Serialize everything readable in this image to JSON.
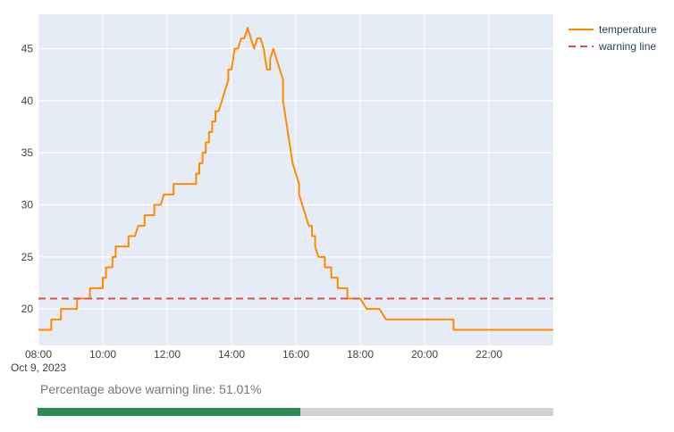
{
  "chart_data": {
    "type": "line",
    "title": "",
    "xlabel": "",
    "ylabel": "",
    "x_start_label": "Oct 9, 2023",
    "x_range": [
      "2023-10-09 08:00",
      "2023-10-09 24:00"
    ],
    "ylim": [
      16.5,
      48.3
    ],
    "x_ticks": [
      "08:00",
      "10:00",
      "12:00",
      "14:00",
      "16:00",
      "18:00",
      "20:00",
      "22:00"
    ],
    "y_ticks": [
      20,
      25,
      30,
      35,
      40,
      45
    ],
    "grid": true,
    "legend_position": "top-right",
    "series": [
      {
        "name": "temperature",
        "color": "#ff8c00",
        "dash": "solid",
        "points": [
          [
            "08:00",
            18
          ],
          [
            "08:24",
            18
          ],
          [
            "08:24",
            19
          ],
          [
            "08:42",
            19
          ],
          [
            "08:42",
            20
          ],
          [
            "09:12",
            20
          ],
          [
            "09:12",
            21
          ],
          [
            "09:36",
            21
          ],
          [
            "09:36",
            22
          ],
          [
            "10:00",
            22
          ],
          [
            "10:00",
            23
          ],
          [
            "10:06",
            23
          ],
          [
            "10:06",
            24
          ],
          [
            "10:18",
            24
          ],
          [
            "10:18",
            25
          ],
          [
            "10:24",
            25
          ],
          [
            "10:24",
            26
          ],
          [
            "10:48",
            26
          ],
          [
            "10:48",
            27
          ],
          [
            "11:00",
            27
          ],
          [
            "11:06",
            28
          ],
          [
            "11:18",
            28
          ],
          [
            "11:18",
            29
          ],
          [
            "11:36",
            29
          ],
          [
            "11:36",
            30
          ],
          [
            "11:48",
            30
          ],
          [
            "11:54",
            31
          ],
          [
            "12:12",
            31
          ],
          [
            "12:12",
            32
          ],
          [
            "12:54",
            32
          ],
          [
            "12:54",
            33
          ],
          [
            "13:00",
            33
          ],
          [
            "13:00",
            34
          ],
          [
            "13:06",
            34
          ],
          [
            "13:06",
            35
          ],
          [
            "13:12",
            35
          ],
          [
            "13:12",
            36
          ],
          [
            "13:18",
            36
          ],
          [
            "13:18",
            37
          ],
          [
            "13:24",
            37
          ],
          [
            "13:24",
            38
          ],
          [
            "13:30",
            38
          ],
          [
            "13:30",
            39
          ],
          [
            "13:36",
            39
          ],
          [
            "13:54",
            42
          ],
          [
            "13:54",
            43
          ],
          [
            "14:00",
            43
          ],
          [
            "14:06",
            45
          ],
          [
            "14:12",
            45
          ],
          [
            "14:18",
            46
          ],
          [
            "14:24",
            46
          ],
          [
            "14:30",
            47
          ],
          [
            "14:36",
            46
          ],
          [
            "14:42",
            45
          ],
          [
            "14:48",
            46
          ],
          [
            "14:54",
            46
          ],
          [
            "15:00",
            45
          ],
          [
            "15:06",
            43
          ],
          [
            "15:12",
            43
          ],
          [
            "15:12",
            44
          ],
          [
            "15:18",
            45
          ],
          [
            "15:24",
            44
          ],
          [
            "15:30",
            43
          ],
          [
            "15:36",
            42
          ],
          [
            "15:36",
            40
          ],
          [
            "15:48",
            36
          ],
          [
            "15:54",
            34
          ],
          [
            "16:00",
            33
          ],
          [
            "16:06",
            32
          ],
          [
            "16:06",
            31
          ],
          [
            "16:12",
            30
          ],
          [
            "16:24",
            28
          ],
          [
            "16:30",
            28
          ],
          [
            "16:30",
            27
          ],
          [
            "16:36",
            27
          ],
          [
            "16:36",
            26
          ],
          [
            "16:42",
            25
          ],
          [
            "16:54",
            25
          ],
          [
            "16:54",
            24
          ],
          [
            "17:06",
            24
          ],
          [
            "17:06",
            23
          ],
          [
            "17:18",
            23
          ],
          [
            "17:18",
            22
          ],
          [
            "17:36",
            22
          ],
          [
            "17:36",
            21
          ],
          [
            "18:00",
            21
          ],
          [
            "18:12",
            20
          ],
          [
            "18:36",
            20
          ],
          [
            "18:48",
            19
          ],
          [
            "20:54",
            19
          ],
          [
            "20:54",
            18
          ],
          [
            "24:00",
            18
          ]
        ]
      },
      {
        "name": "warning line",
        "color": "#d9534f",
        "dash": "dashed",
        "points": [
          [
            "08:00",
            21
          ],
          [
            "24:00",
            21
          ]
        ]
      }
    ],
    "annotation": "Percentage above warning line: 51.01%",
    "percent_above_warning": 51.01
  },
  "colors": {
    "plot_background": "#e5ecf6",
    "gridline": "#ffffff",
    "progress_fill": "#2e8b57",
    "progress_track": "#d3d3d3"
  }
}
